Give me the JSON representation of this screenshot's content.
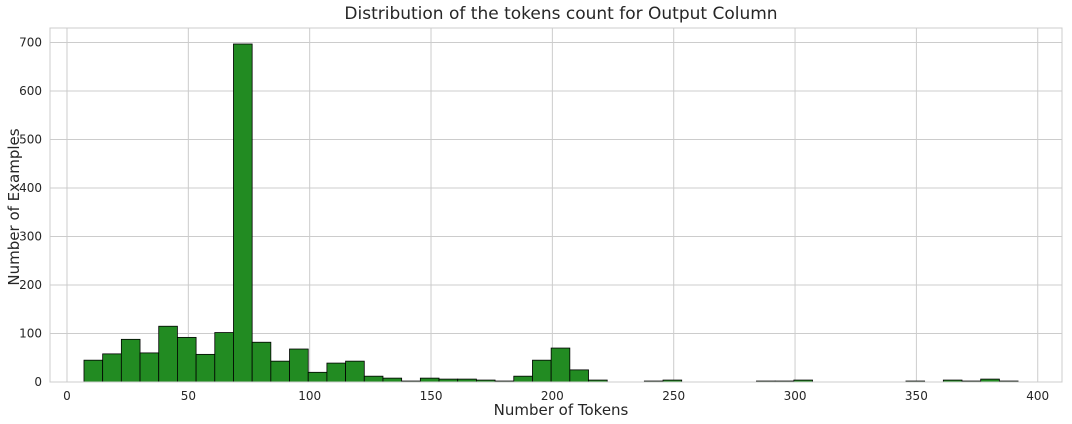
{
  "chart_data": {
    "type": "bar",
    "title": "Distribution of the tokens count for Output Column",
    "xlabel": "Number of Tokens",
    "ylabel": "Number of Examples",
    "xlim": [
      -7,
      410
    ],
    "ylim": [
      0,
      730
    ],
    "x_ticks": [
      0,
      50,
      100,
      150,
      200,
      250,
      300,
      350,
      400
    ],
    "y_ticks": [
      0,
      100,
      200,
      300,
      400,
      500,
      600,
      700
    ],
    "grid": true,
    "bar_color": "#228b22",
    "bar_edge_color": "#000000",
    "bins": [
      {
        "x0": 7.0,
        "x1": 14.7,
        "count": 45
      },
      {
        "x0": 14.7,
        "x1": 22.4,
        "count": 58
      },
      {
        "x0": 22.4,
        "x1": 30.1,
        "count": 88
      },
      {
        "x0": 30.1,
        "x1": 37.8,
        "count": 60
      },
      {
        "x0": 37.8,
        "x1": 45.5,
        "count": 115
      },
      {
        "x0": 45.5,
        "x1": 53.2,
        "count": 92
      },
      {
        "x0": 53.2,
        "x1": 60.9,
        "count": 57
      },
      {
        "x0": 60.9,
        "x1": 68.6,
        "count": 102
      },
      {
        "x0": 68.6,
        "x1": 76.3,
        "count": 697
      },
      {
        "x0": 76.3,
        "x1": 84.0,
        "count": 82
      },
      {
        "x0": 84.0,
        "x1": 91.7,
        "count": 43
      },
      {
        "x0": 91.7,
        "x1": 99.4,
        "count": 68
      },
      {
        "x0": 99.4,
        "x1": 107.1,
        "count": 20
      },
      {
        "x0": 107.1,
        "x1": 114.8,
        "count": 39
      },
      {
        "x0": 114.8,
        "x1": 122.5,
        "count": 43
      },
      {
        "x0": 122.5,
        "x1": 130.2,
        "count": 12
      },
      {
        "x0": 130.2,
        "x1": 137.9,
        "count": 8
      },
      {
        "x0": 137.9,
        "x1": 145.6,
        "count": 2
      },
      {
        "x0": 145.6,
        "x1": 153.3,
        "count": 8
      },
      {
        "x0": 153.3,
        "x1": 161.0,
        "count": 6
      },
      {
        "x0": 161.0,
        "x1": 168.7,
        "count": 6
      },
      {
        "x0": 168.7,
        "x1": 176.4,
        "count": 4
      },
      {
        "x0": 176.4,
        "x1": 184.1,
        "count": 2
      },
      {
        "x0": 184.1,
        "x1": 191.8,
        "count": 12
      },
      {
        "x0": 191.8,
        "x1": 199.5,
        "count": 45
      },
      {
        "x0": 199.5,
        "x1": 207.2,
        "count": 70
      },
      {
        "x0": 207.2,
        "x1": 214.9,
        "count": 25
      },
      {
        "x0": 214.9,
        "x1": 222.6,
        "count": 4
      },
      {
        "x0": 237.9,
        "x1": 245.6,
        "count": 2
      },
      {
        "x0": 245.6,
        "x1": 253.3,
        "count": 4
      },
      {
        "x0": 284.1,
        "x1": 291.8,
        "count": 2
      },
      {
        "x0": 291.8,
        "x1": 299.5,
        "count": 2
      },
      {
        "x0": 299.5,
        "x1": 307.2,
        "count": 4
      },
      {
        "x0": 345.7,
        "x1": 353.4,
        "count": 2
      },
      {
        "x0": 361.1,
        "x1": 368.8,
        "count": 4
      },
      {
        "x0": 368.8,
        "x1": 376.5,
        "count": 2
      },
      {
        "x0": 376.5,
        "x1": 384.2,
        "count": 6
      },
      {
        "x0": 384.2,
        "x1": 391.9,
        "count": 2
      }
    ]
  }
}
